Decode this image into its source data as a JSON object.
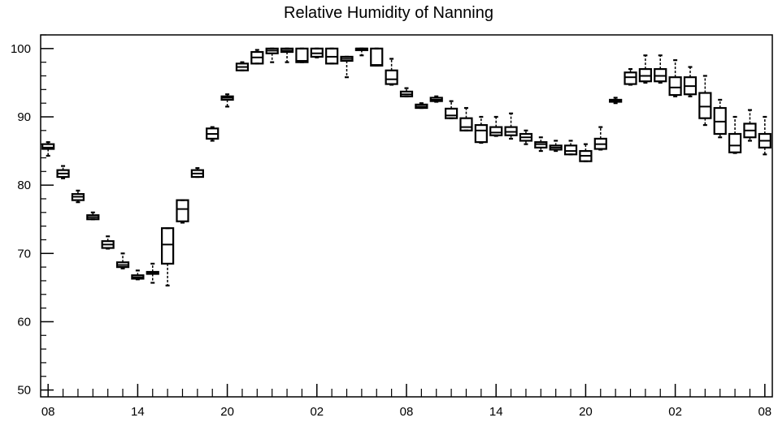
{
  "chart_data": {
    "type": "box",
    "title": "Relative Humidity of Nanning",
    "xlabel": "",
    "ylabel": "",
    "ylim": [
      49,
      102
    ],
    "xlim": [
      -0.5,
      48.5
    ],
    "yticks": [
      50,
      60,
      70,
      80,
      90,
      100
    ],
    "xticks": [
      {
        "x": 0,
        "label": "08"
      },
      {
        "x": 6,
        "label": "14"
      },
      {
        "x": 12,
        "label": "20"
      },
      {
        "x": 18,
        "label": "02"
      },
      {
        "x": 24,
        "label": "08"
      },
      {
        "x": 30,
        "label": "14"
      },
      {
        "x": 36,
        "label": "20"
      },
      {
        "x": 42,
        "label": "02"
      },
      {
        "x": 48,
        "label": "08"
      }
    ],
    "minor_xticks_every": 1,
    "minor_yticks_every": 2,
    "boxes": [
      {
        "x": 0,
        "min": 84.3,
        "q1": 85.3,
        "median": 85.5,
        "q3": 86.0,
        "max": 86.3
      },
      {
        "x": 1,
        "min": 81.0,
        "q1": 81.2,
        "median": 81.7,
        "q3": 82.2,
        "max": 82.8
      },
      {
        "x": 2,
        "min": 77.5,
        "q1": 77.8,
        "median": 78.3,
        "q3": 78.7,
        "max": 79.2
      },
      {
        "x": 3,
        "min": 75.0,
        "q1": 75.0,
        "median": 75.3,
        "q3": 75.6,
        "max": 76.0
      },
      {
        "x": 4,
        "min": 70.7,
        "q1": 70.8,
        "median": 71.3,
        "q3": 71.8,
        "max": 72.5
      },
      {
        "x": 5,
        "min": 67.8,
        "q1": 68.0,
        "median": 68.3,
        "q3": 68.7,
        "max": 70.0
      },
      {
        "x": 6,
        "min": 66.2,
        "q1": 66.3,
        "median": 66.5,
        "q3": 66.8,
        "max": 67.5
      },
      {
        "x": 7,
        "min": 65.7,
        "q1": 67.0,
        "median": 67.2,
        "q3": 67.3,
        "max": 68.5
      },
      {
        "x": 8,
        "min": 65.3,
        "q1": 68.5,
        "median": 71.3,
        "q3": 73.7,
        "max": 73.7
      },
      {
        "x": 9,
        "min": 74.5,
        "q1": 74.7,
        "median": 76.5,
        "q3": 77.8,
        "max": 77.8
      },
      {
        "x": 10,
        "min": 81.2,
        "q1": 81.2,
        "median": 81.7,
        "q3": 82.2,
        "max": 82.5
      },
      {
        "x": 11,
        "min": 86.5,
        "q1": 86.8,
        "median": 87.5,
        "q3": 88.3,
        "max": 88.5
      },
      {
        "x": 12,
        "min": 91.5,
        "q1": 92.5,
        "median": 92.8,
        "q3": 93.0,
        "max": 93.3
      },
      {
        "x": 13,
        "min": 96.8,
        "q1": 96.8,
        "median": 97.3,
        "q3": 97.8,
        "max": 98.0
      },
      {
        "x": 14,
        "min": 97.8,
        "q1": 97.8,
        "median": 98.7,
        "q3": 99.5,
        "max": 99.8
      },
      {
        "x": 15,
        "min": 98.0,
        "q1": 99.3,
        "median": 99.7,
        "q3": 100.0,
        "max": 100.0
      },
      {
        "x": 16,
        "min": 98.0,
        "q1": 99.5,
        "median": 99.7,
        "q3": 100.0,
        "max": 100.0
      },
      {
        "x": 17,
        "min": 98.0,
        "q1": 98.0,
        "median": 98.2,
        "q3": 100.0,
        "max": 100.0
      },
      {
        "x": 18,
        "min": 98.7,
        "q1": 98.8,
        "median": 99.3,
        "q3": 100.0,
        "max": 100.0
      },
      {
        "x": 19,
        "min": 97.8,
        "q1": 97.8,
        "median": 98.8,
        "q3": 100.0,
        "max": 100.0
      },
      {
        "x": 20,
        "min": 95.8,
        "q1": 98.2,
        "median": 98.5,
        "q3": 98.8,
        "max": 98.8
      },
      {
        "x": 21,
        "min": 99.0,
        "q1": 99.8,
        "median": 100.0,
        "q3": 100.0,
        "max": 100.0
      },
      {
        "x": 22,
        "min": 97.5,
        "q1": 97.5,
        "median": 97.6,
        "q3": 100.0,
        "max": 100.0
      },
      {
        "x": 23,
        "min": 94.7,
        "q1": 94.8,
        "median": 95.5,
        "q3": 96.8,
        "max": 98.5
      },
      {
        "x": 24,
        "min": 93.0,
        "q1": 93.0,
        "median": 93.3,
        "q3": 93.7,
        "max": 94.2
      },
      {
        "x": 25,
        "min": 91.3,
        "q1": 91.3,
        "median": 91.5,
        "q3": 91.8,
        "max": 92.0
      },
      {
        "x": 26,
        "min": 92.2,
        "q1": 92.3,
        "median": 92.5,
        "q3": 92.8,
        "max": 93.0
      },
      {
        "x": 27,
        "min": 89.8,
        "q1": 89.8,
        "median": 90.2,
        "q3": 91.2,
        "max": 92.3
      },
      {
        "x": 28,
        "min": 88.0,
        "q1": 88.0,
        "median": 88.5,
        "q3": 89.8,
        "max": 91.3
      },
      {
        "x": 29,
        "min": 86.2,
        "q1": 86.3,
        "median": 88.0,
        "q3": 88.8,
        "max": 90.0
      },
      {
        "x": 30,
        "min": 87.2,
        "q1": 87.3,
        "median": 87.7,
        "q3": 88.5,
        "max": 90.0
      },
      {
        "x": 31,
        "min": 86.8,
        "q1": 87.3,
        "median": 87.8,
        "q3": 88.5,
        "max": 90.5
      },
      {
        "x": 32,
        "min": 86.0,
        "q1": 86.5,
        "median": 87.0,
        "q3": 87.5,
        "max": 88.0
      },
      {
        "x": 33,
        "min": 85.0,
        "q1": 85.5,
        "median": 86.0,
        "q3": 86.3,
        "max": 87.0
      },
      {
        "x": 34,
        "min": 85.0,
        "q1": 85.2,
        "median": 85.5,
        "q3": 85.8,
        "max": 86.5
      },
      {
        "x": 35,
        "min": 84.5,
        "q1": 84.5,
        "median": 85.0,
        "q3": 85.8,
        "max": 86.5
      },
      {
        "x": 36,
        "min": 83.5,
        "q1": 83.5,
        "median": 84.3,
        "q3": 85.0,
        "max": 86.0
      },
      {
        "x": 37,
        "min": 85.2,
        "q1": 85.3,
        "median": 86.0,
        "q3": 86.8,
        "max": 88.5
      },
      {
        "x": 38,
        "min": 92.0,
        "q1": 92.2,
        "median": 92.3,
        "q3": 92.5,
        "max": 92.8
      },
      {
        "x": 39,
        "min": 94.7,
        "q1": 94.8,
        "median": 95.8,
        "q3": 96.5,
        "max": 97.0
      },
      {
        "x": 40,
        "min": 95.0,
        "q1": 95.2,
        "median": 96.0,
        "q3": 97.0,
        "max": 99.0
      },
      {
        "x": 41,
        "min": 95.0,
        "q1": 95.2,
        "median": 96.0,
        "q3": 97.0,
        "max": 99.0
      },
      {
        "x": 42,
        "min": 93.0,
        "q1": 93.2,
        "median": 94.3,
        "q3": 95.8,
        "max": 98.3
      },
      {
        "x": 43,
        "min": 93.0,
        "q1": 93.3,
        "median": 94.5,
        "q3": 95.8,
        "max": 97.3
      },
      {
        "x": 44,
        "min": 88.8,
        "q1": 89.8,
        "median": 91.5,
        "q3": 93.5,
        "max": 96.0
      },
      {
        "x": 45,
        "min": 87.0,
        "q1": 87.5,
        "median": 89.3,
        "q3": 91.3,
        "max": 92.5
      },
      {
        "x": 46,
        "min": 84.7,
        "q1": 84.8,
        "median": 85.8,
        "q3": 87.5,
        "max": 90.0
      },
      {
        "x": 47,
        "min": 86.5,
        "q1": 87.0,
        "median": 88.0,
        "q3": 89.0,
        "max": 91.0
      },
      {
        "x": 48,
        "min": 84.5,
        "q1": 85.5,
        "median": 86.5,
        "q3": 87.5,
        "max": 90.0
      }
    ]
  }
}
